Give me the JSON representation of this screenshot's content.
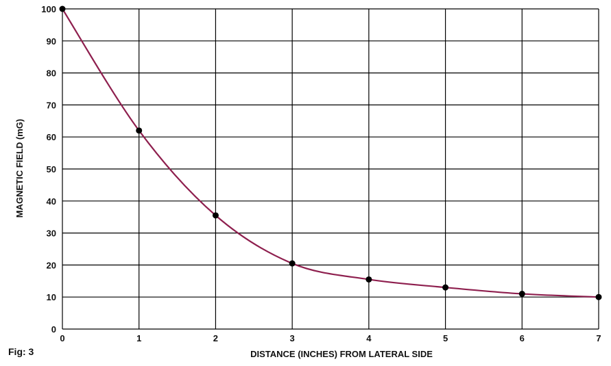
{
  "figure_label": "Fig: 3",
  "chart_data": {
    "type": "line",
    "title": "",
    "xlabel": "DISTANCE (INCHES) FROM LATERAL SIDE",
    "ylabel": "MAGNETIC FIELD (mG)",
    "xlim": [
      0,
      7
    ],
    "ylim": [
      0,
      100
    ],
    "xticks": [
      0,
      1,
      2,
      3,
      4,
      5,
      6,
      7
    ],
    "yticks": [
      0,
      10,
      20,
      30,
      40,
      50,
      60,
      70,
      80,
      90,
      100
    ],
    "grid": true,
    "x": [
      0,
      1,
      2,
      3,
      4,
      5,
      6,
      7
    ],
    "series": [
      {
        "values": [
          100,
          62,
          35.5,
          20.5,
          15.5,
          13,
          11,
          10
        ]
      }
    ],
    "line_color": "#8e1f4e",
    "marker_color": "#000000",
    "grid_color": "#000000"
  }
}
